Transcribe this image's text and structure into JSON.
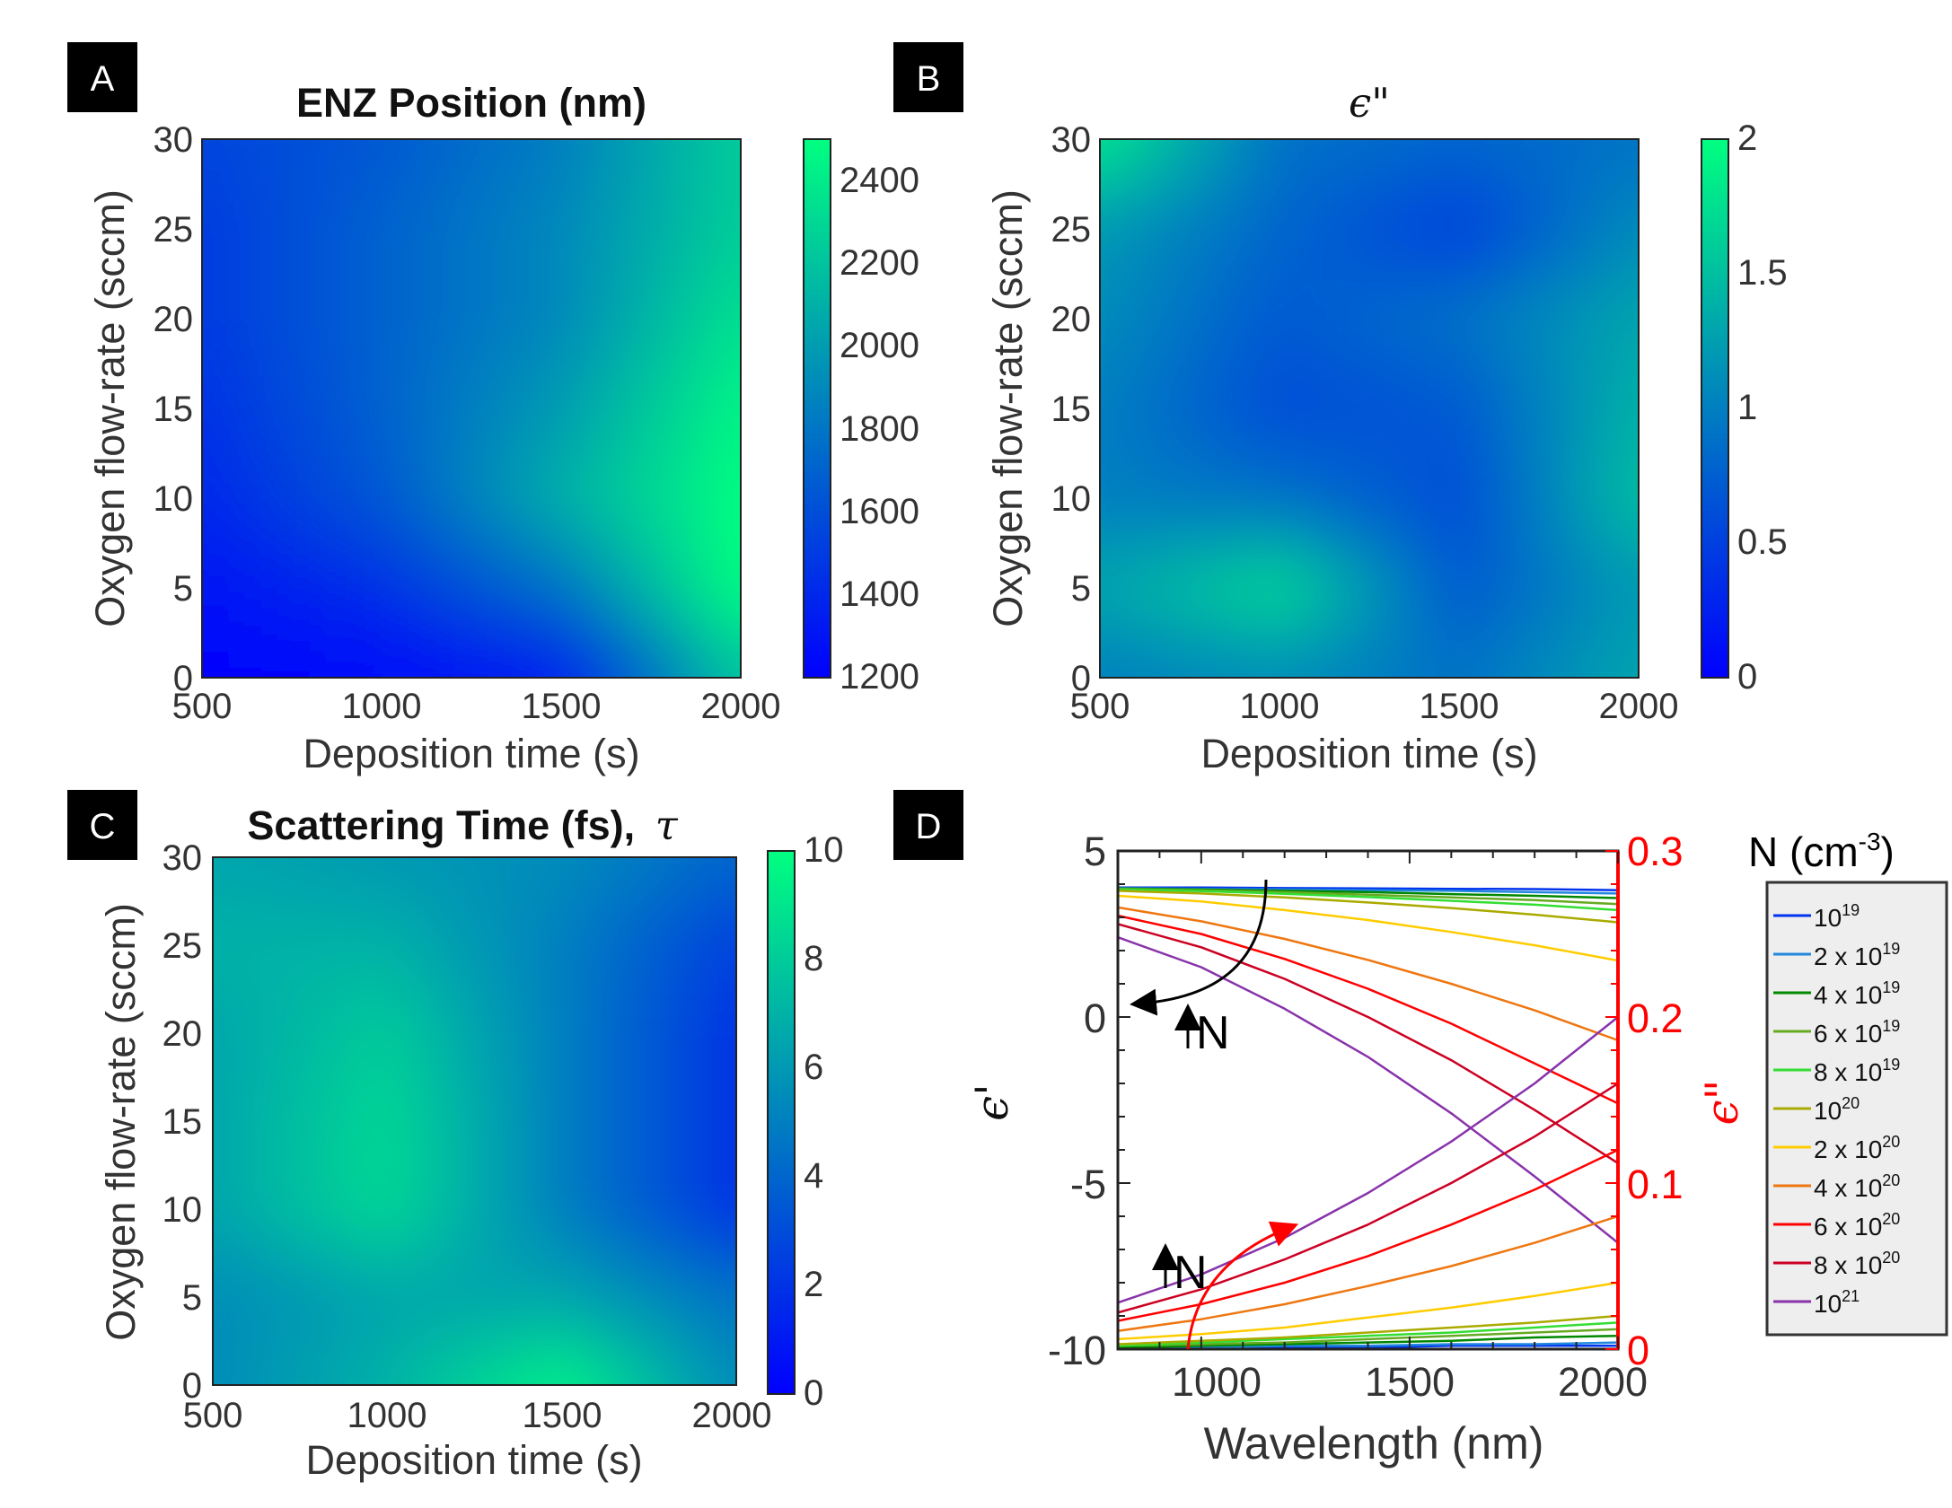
{
  "panels": [
    {
      "letter": "A",
      "title": "ENZ Position (nm)",
      "xlabel": "Deposition time (s)",
      "ylabel": "Oxygen flow-rate (sccm)",
      "xticks": [
        "500",
        "1000",
        "1500",
        "2000"
      ],
      "yticks": [
        "0",
        "5",
        "10",
        "15",
        "20",
        "25",
        "30"
      ],
      "colorbar_ticks": [
        "1200",
        "1400",
        "1600",
        "1800",
        "2000",
        "2200",
        "2400"
      ]
    },
    {
      "letter": "B",
      "title": "ϵ\"",
      "xlabel": "Deposition time (s)",
      "ylabel": "Oxygen flow-rate (sccm)",
      "xticks": [
        "500",
        "1000",
        "1500",
        "2000"
      ],
      "yticks": [
        "0",
        "5",
        "10",
        "15",
        "20",
        "25",
        "30"
      ],
      "colorbar_ticks": [
        "0",
        "0.5",
        "1",
        "1.5",
        "2"
      ]
    },
    {
      "letter": "C",
      "title": "Scattering Time (fs),",
      "title_symbol": "τ",
      "xlabel": "Deposition time (s)",
      "ylabel": "Oxygen flow-rate (sccm)",
      "xticks": [
        "500",
        "1000",
        "1500",
        "2000"
      ],
      "yticks": [
        "0",
        "5",
        "10",
        "15",
        "20",
        "25",
        "30"
      ],
      "colorbar_ticks": [
        "0",
        "2",
        "4",
        "6",
        "8",
        "10"
      ]
    },
    {
      "letter": "D",
      "xlabel": "Wavelength (nm)",
      "ylabel_left": "ϵ'",
      "ylabel_right": "ϵ\"",
      "xticks": [
        "1000",
        "1500",
        "2000"
      ],
      "yticks_left": [
        "5",
        "0",
        "-5",
        "-10"
      ],
      "yticks_right": [
        "0.3",
        "0.2",
        "0.1",
        "0"
      ],
      "annotation_left": "N",
      "annotation_right": "N",
      "legend_title": "N (cm",
      "legend_title_sup": "-3",
      "legend_title_end": ")",
      "legend": [
        {
          "base": "10",
          "sup": "19"
        },
        {
          "base": "2 x 10",
          "sup": "19"
        },
        {
          "base": "4 x 10",
          "sup": "19"
        },
        {
          "base": "6 x 10",
          "sup": "19"
        },
        {
          "base": "8 x 10",
          "sup": "19"
        },
        {
          "base": "10",
          "sup": "20"
        },
        {
          "base": "2 x 10",
          "sup": "20"
        },
        {
          "base": "4 x 10",
          "sup": "20"
        },
        {
          "base": "6 x 10",
          "sup": "20"
        },
        {
          "base": "8 x 10",
          "sup": "20"
        },
        {
          "base": "10",
          "sup": "21"
        }
      ]
    }
  ],
  "colors": {
    "colormap_low": "#0000ff",
    "colormap_high": "#00ff80",
    "right_axis": "#ff0000",
    "series": [
      "#0033ee",
      "#2288dd",
      "#008800",
      "#66aa22",
      "#33dd33",
      "#aaaa00",
      "#ffcc00",
      "#ee7711",
      "#ff0000",
      "#cc0022",
      "#8833aa"
    ]
  },
  "chart_data": [
    {
      "type": "heatmap",
      "title": "ENZ Position (nm)",
      "xlabel": "Deposition time (s)",
      "ylabel": "Oxygen flow-rate (sccm)",
      "xlim": [
        500,
        2000
      ],
      "ylim": [
        0,
        30
      ],
      "clim": [
        1200,
        2500
      ],
      "x": [
        500,
        1000,
        1500,
        2000
      ],
      "y": [
        0,
        5,
        10,
        15,
        20,
        25,
        30
      ],
      "z": [
        [
          1200,
          1250,
          1350,
          2200
        ],
        [
          1300,
          1450,
          1800,
          2500
        ],
        [
          1400,
          1650,
          2100,
          2500
        ],
        [
          1450,
          1700,
          2000,
          2450
        ],
        [
          1500,
          1700,
          1900,
          2350
        ],
        [
          1500,
          1700,
          1900,
          2250
        ],
        [
          1550,
          1650,
          1850,
          2250
        ]
      ]
    },
    {
      "type": "heatmap",
      "title": "ϵ\"",
      "xlabel": "Deposition time (s)",
      "ylabel": "Oxygen flow-rate (sccm)",
      "xlim": [
        500,
        2000
      ],
      "ylim": [
        0,
        30
      ],
      "clim": [
        0,
        2
      ],
      "x": [
        500,
        1000,
        1500,
        2000
      ],
      "y": [
        0,
        5,
        10,
        15,
        20,
        25,
        30
      ],
      "z": [
        [
          1.0,
          1.1,
          0.9,
          1.3
        ],
        [
          1.3,
          1.7,
          0.7,
          1.2
        ],
        [
          1.0,
          0.9,
          0.6,
          1.5
        ],
        [
          1.0,
          0.6,
          0.7,
          1.4
        ],
        [
          1.1,
          0.7,
          0.9,
          1.3
        ],
        [
          1.2,
          0.8,
          0.5,
          1.1
        ],
        [
          1.8,
          0.9,
          0.8,
          0.9
        ]
      ]
    },
    {
      "type": "heatmap",
      "title": "Scattering Time (fs), τ",
      "xlabel": "Deposition time (s)",
      "ylabel": "Oxygen flow-rate (sccm)",
      "xlim": [
        500,
        2000
      ],
      "ylim": [
        0,
        30
      ],
      "clim": [
        0,
        10
      ],
      "x": [
        500,
        1000,
        1500,
        2000
      ],
      "y": [
        0,
        5,
        10,
        15,
        20,
        25,
        30
      ],
      "z": [
        [
          5.5,
          7.0,
          9.5,
          5.5
        ],
        [
          5.5,
          6.5,
          6.5,
          4.5
        ],
        [
          6.5,
          8.5,
          5.0,
          2.0
        ],
        [
          6.5,
          8.5,
          5.0,
          2.0
        ],
        [
          6.5,
          8.0,
          5.0,
          2.0
        ],
        [
          7.0,
          7.0,
          5.0,
          2.5
        ],
        [
          6.5,
          6.0,
          5.5,
          4.0
        ]
      ]
    },
    {
      "type": "line",
      "xlabel": "Wavelength (nm)",
      "ylabel": "ϵ'",
      "y2label": "ϵ\"",
      "xlim": [
        800,
        2000
      ],
      "ylim": [
        -10,
        5
      ],
      "y2lim": [
        0,
        0.3
      ],
      "x": [
        800,
        1000,
        1200,
        1400,
        1600,
        1800,
        2000
      ],
      "series_eps_real": [
        {
          "name": "10^19",
          "values": [
            3.9,
            3.9,
            3.88,
            3.87,
            3.86,
            3.85,
            3.82
          ]
        },
        {
          "name": "2 x 10^19",
          "values": [
            3.88,
            3.86,
            3.84,
            3.82,
            3.8,
            3.76,
            3.72
          ]
        },
        {
          "name": "4 x 10^19",
          "values": [
            3.87,
            3.84,
            3.8,
            3.76,
            3.7,
            3.65,
            3.58
          ]
        },
        {
          "name": "6 x 10^19",
          "values": [
            3.86,
            3.82,
            3.76,
            3.68,
            3.6,
            3.52,
            3.4
          ]
        },
        {
          "name": "8 x 10^19",
          "values": [
            3.84,
            3.79,
            3.71,
            3.61,
            3.5,
            3.38,
            3.22
          ]
        },
        {
          "name": "10^20",
          "values": [
            3.8,
            3.72,
            3.6,
            3.45,
            3.28,
            3.08,
            2.85
          ]
        },
        {
          "name": "2 x 10^20",
          "values": [
            3.65,
            3.48,
            3.22,
            2.92,
            2.56,
            2.16,
            1.7
          ]
        },
        {
          "name": "4 x 10^20",
          "values": [
            3.3,
            2.88,
            2.35,
            1.72,
            1.0,
            0.2,
            -0.7
          ]
        },
        {
          "name": "6 x 10^20",
          "values": [
            3.05,
            2.5,
            1.75,
            0.85,
            -0.2,
            -1.4,
            -2.6
          ]
        },
        {
          "name": "8 x 10^20",
          "values": [
            2.8,
            2.1,
            1.15,
            0.0,
            -1.3,
            -2.8,
            -4.4
          ]
        },
        {
          "name": "10^21",
          "values": [
            2.4,
            1.5,
            0.25,
            -1.2,
            -2.9,
            -4.8,
            -6.8
          ]
        }
      ],
      "series_eps_imag": [
        {
          "name": "10^19",
          "values": [
            0.0,
            0.001,
            0.001,
            0.001,
            0.002,
            0.002,
            0.002
          ]
        },
        {
          "name": "2 x 10^19",
          "values": [
            0.001,
            0.001,
            0.002,
            0.002,
            0.003,
            0.003,
            0.004
          ]
        },
        {
          "name": "4 x 10^19",
          "values": [
            0.001,
            0.002,
            0.003,
            0.004,
            0.005,
            0.007,
            0.008
          ]
        },
        {
          "name": "6 x 10^19",
          "values": [
            0.002,
            0.003,
            0.004,
            0.006,
            0.008,
            0.01,
            0.012
          ]
        },
        {
          "name": "8 x 10^19",
          "values": [
            0.002,
            0.004,
            0.006,
            0.008,
            0.01,
            0.013,
            0.016
          ]
        },
        {
          "name": "10^20",
          "values": [
            0.003,
            0.005,
            0.007,
            0.01,
            0.013,
            0.016,
            0.02
          ]
        },
        {
          "name": "2 x 10^20",
          "values": [
            0.006,
            0.009,
            0.013,
            0.019,
            0.025,
            0.032,
            0.04
          ]
        },
        {
          "name": "4 x 10^20",
          "values": [
            0.011,
            0.018,
            0.027,
            0.038,
            0.05,
            0.064,
            0.08
          ]
        },
        {
          "name": "6 x 10^20",
          "values": [
            0.017,
            0.027,
            0.04,
            0.056,
            0.075,
            0.096,
            0.12
          ]
        },
        {
          "name": "8 x 10^20",
          "values": [
            0.022,
            0.036,
            0.054,
            0.075,
            0.1,
            0.128,
            0.16
          ]
        },
        {
          "name": "10^21",
          "values": [
            0.028,
            0.045,
            0.067,
            0.094,
            0.125,
            0.16,
            0.2
          ]
        }
      ]
    }
  ]
}
